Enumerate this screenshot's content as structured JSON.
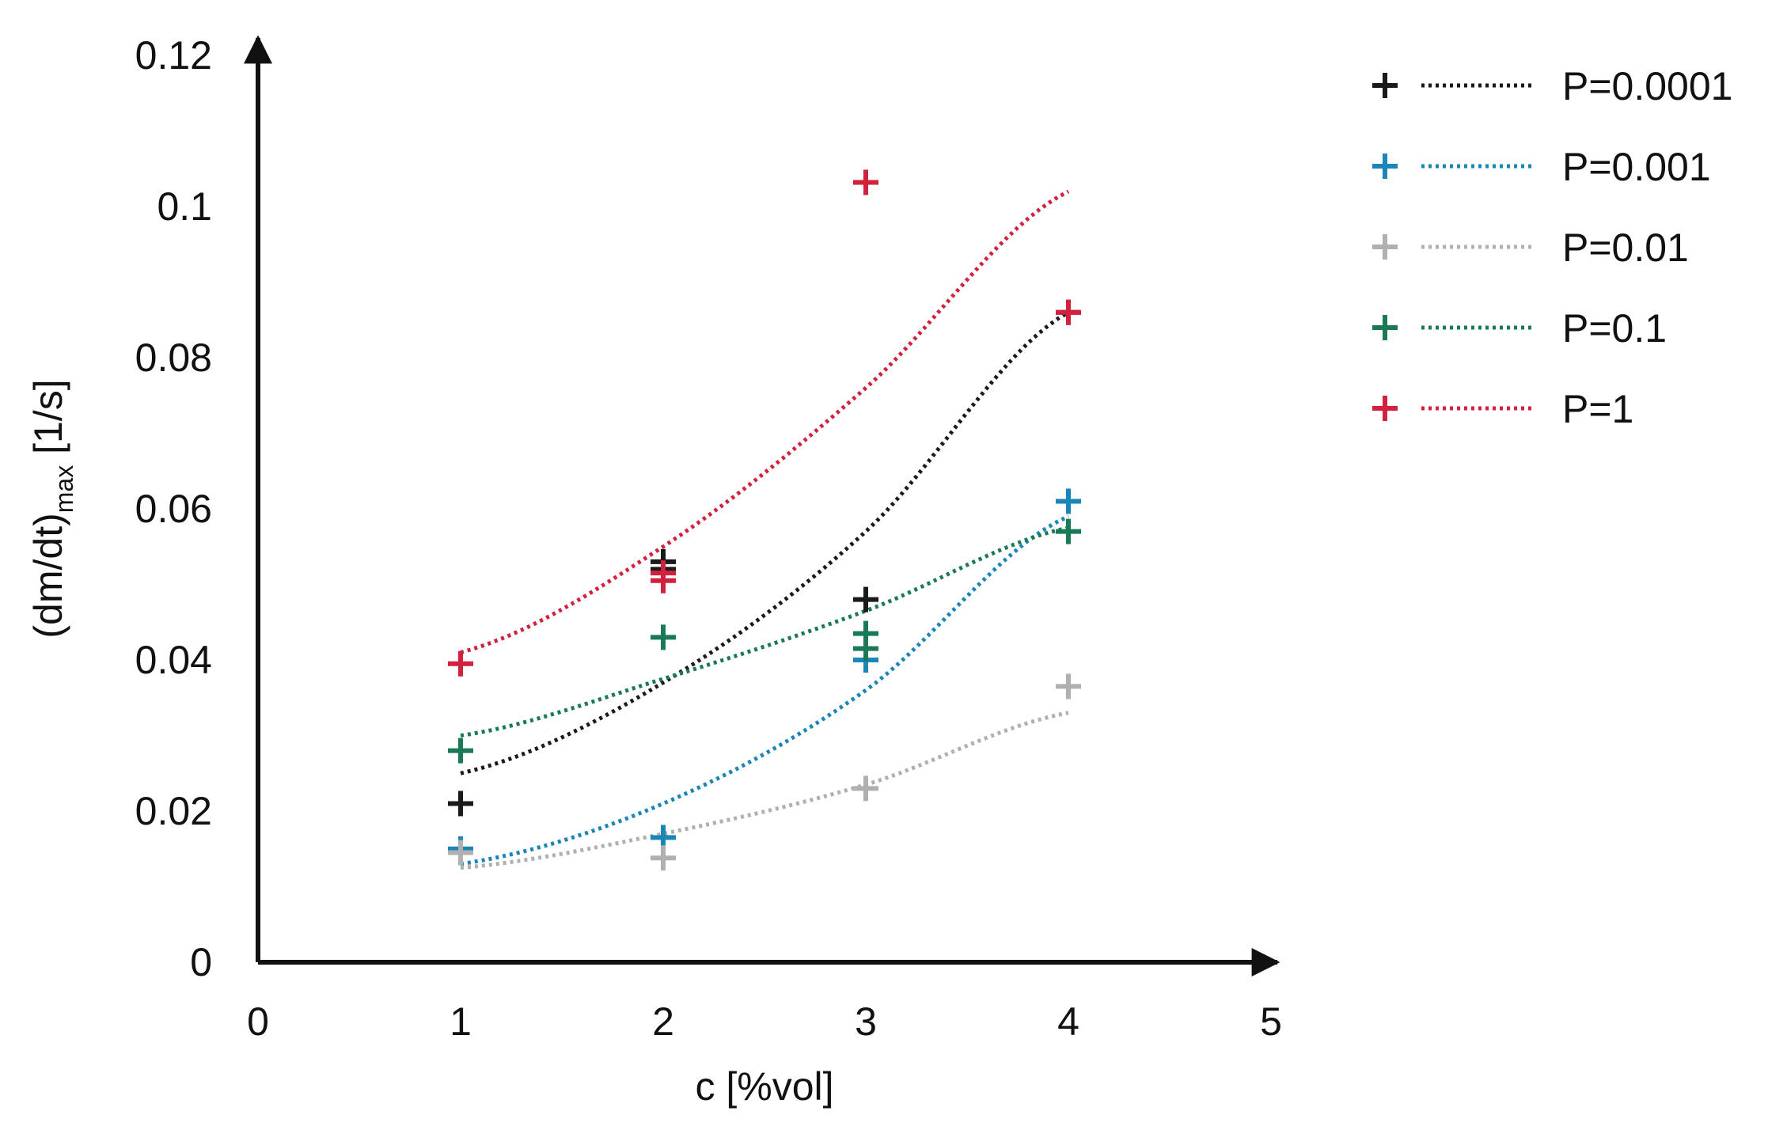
{
  "chart_data": {
    "type": "scatter",
    "title": "",
    "xlabel": "c [%vol]",
    "ylabel": {
      "main": "(dm/dt)",
      "subscript": "max",
      "unit": " [1/s]"
    },
    "xlim": [
      0,
      5
    ],
    "ylim": [
      0,
      0.12
    ],
    "xticks": [
      0,
      1,
      2,
      3,
      4,
      5
    ],
    "xtick_labels": [
      "0",
      "1",
      "2",
      "3",
      "4",
      "5"
    ],
    "yticks": [
      0,
      0.02,
      0.04,
      0.06,
      0.08,
      0.1,
      0.12
    ],
    "ytick_labels": [
      "0",
      "0.02",
      "0.04",
      "0.06",
      "0.08",
      "0.1",
      "0.12"
    ],
    "grid": false,
    "legend_position": "right",
    "series": [
      {
        "name": "P=0.0001",
        "color": "#1a1a1a",
        "x": [
          1,
          2,
          2,
          3,
          4
        ],
        "y": [
          0.021,
          0.052,
          0.053,
          0.048,
          0.086
        ],
        "trend": {
          "x": [
            1,
            2,
            3,
            4
          ],
          "y": [
            0.025,
            0.037,
            0.057,
            0.086
          ]
        }
      },
      {
        "name": "P=0.001",
        "color": "#1a86b8",
        "x": [
          1,
          2,
          3,
          4
        ],
        "y": [
          0.015,
          0.0165,
          0.04,
          0.061
        ],
        "trend": {
          "x": [
            1,
            2,
            3,
            4
          ],
          "y": [
            0.013,
            0.021,
            0.036,
            0.059
          ]
        }
      },
      {
        "name": "P=0.01",
        "color": "#b0b0b0",
        "x": [
          1,
          2,
          3,
          4
        ],
        "y": [
          0.0145,
          0.0138,
          0.023,
          0.0365
        ],
        "trend": {
          "x": [
            1,
            2,
            3,
            4
          ],
          "y": [
            0.0125,
            0.017,
            0.0235,
            0.033
          ]
        }
      },
      {
        "name": "P=0.1",
        "color": "#1a7a55",
        "x": [
          1,
          2,
          3,
          3,
          4
        ],
        "y": [
          0.028,
          0.043,
          0.0435,
          0.0415,
          0.057
        ],
        "trend": {
          "x": [
            1,
            2,
            3,
            4
          ],
          "y": [
            0.03,
            0.0375,
            0.0465,
            0.0575
          ]
        }
      },
      {
        "name": "P=1",
        "color": "#d1213d",
        "x": [
          1,
          2,
          2,
          3,
          4
        ],
        "y": [
          0.0395,
          0.0515,
          0.0505,
          0.1032,
          0.086
        ],
        "trend": {
          "x": [
            1,
            2,
            3,
            4
          ],
          "y": [
            0.041,
            0.055,
            0.076,
            0.102
          ]
        }
      }
    ]
  }
}
